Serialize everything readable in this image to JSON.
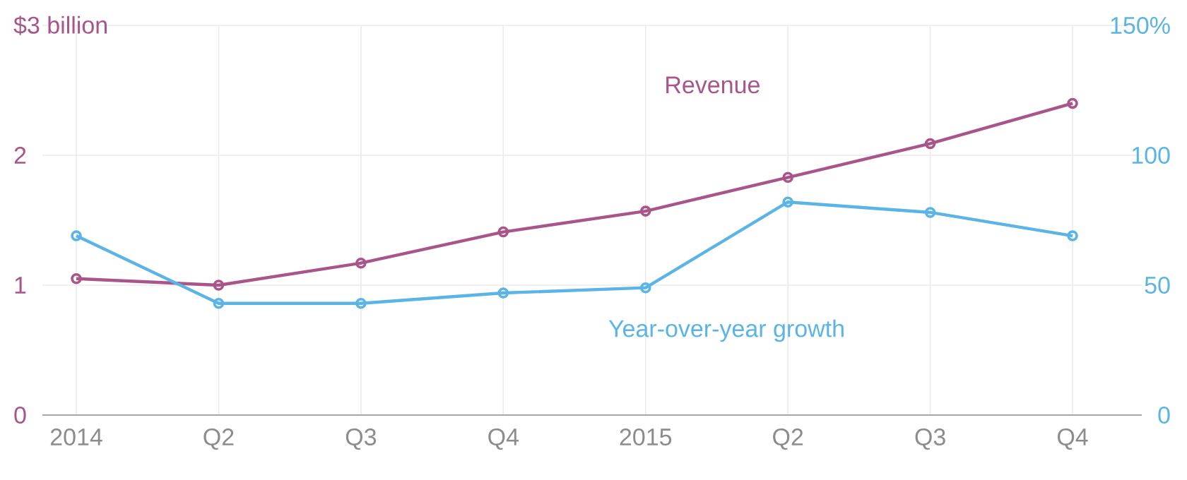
{
  "chart_data": {
    "type": "line",
    "categories": [
      "2014",
      "Q2",
      "Q3",
      "Q4",
      "2015",
      "Q2",
      "Q3",
      "Q4"
    ],
    "series": [
      {
        "name": "Revenue",
        "color": "#a8558a",
        "values": [
          1.05,
          1.0,
          1.17,
          1.41,
          1.57,
          1.83,
          2.09,
          2.4
        ]
      },
      {
        "name": "Year-over-year growth",
        "color": "#5ab4e5",
        "axis": "y2",
        "values": [
          69,
          43,
          43,
          47,
          49,
          82,
          78,
          69
        ]
      }
    ],
    "ylim": [
      0,
      3
    ],
    "yticks": [
      0,
      1,
      2,
      {
        "value": 3,
        "label": "$3 billion"
      }
    ],
    "y2lim": [
      0,
      150
    ],
    "y2ticks": [
      0,
      50,
      100,
      {
        "value": 150,
        "label": "150%"
      }
    ],
    "grid": true,
    "marker": "circle",
    "line_style": "solid"
  }
}
